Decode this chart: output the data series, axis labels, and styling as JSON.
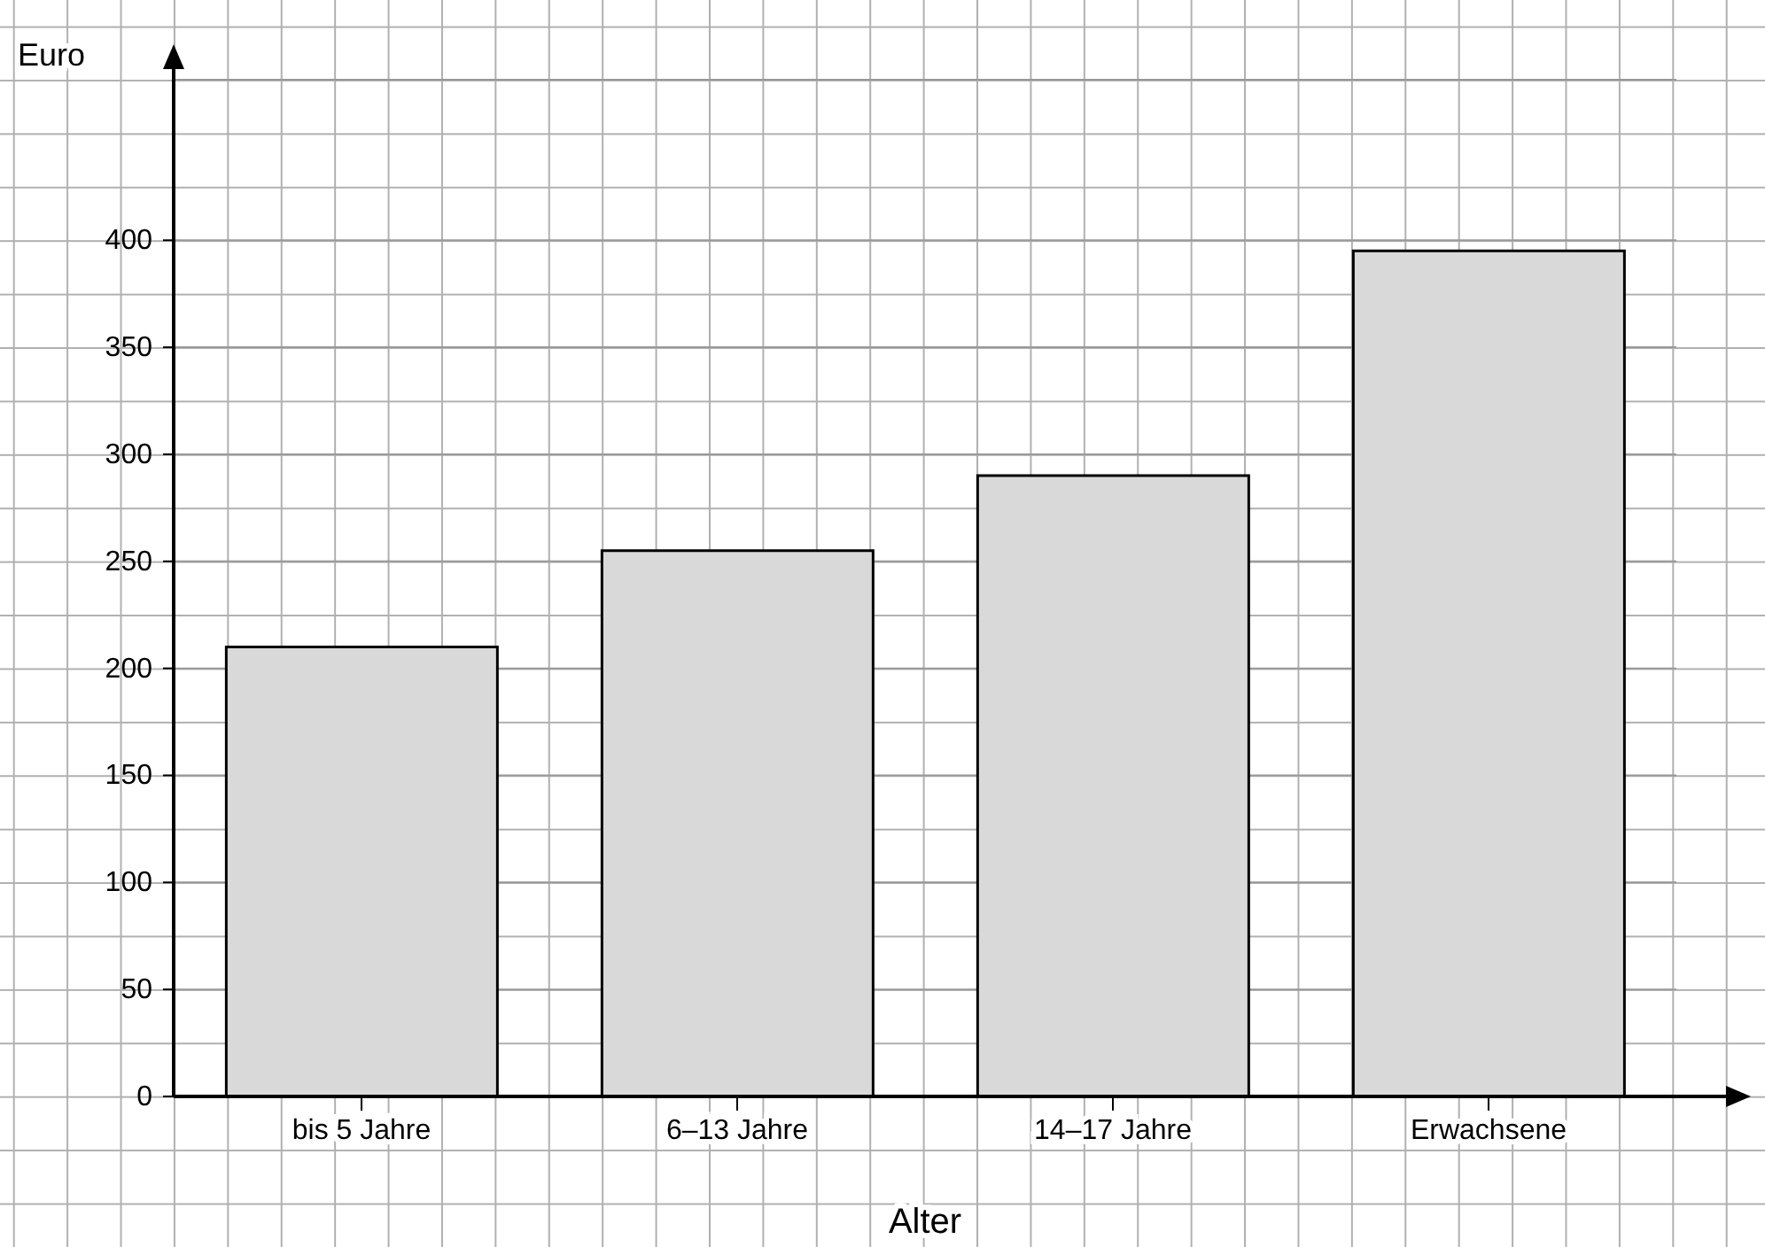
{
  "chart_data": {
    "type": "bar",
    "ylabel": "Euro",
    "xlabel": "Alter",
    "categories": [
      "bis 5 Jahre",
      "6–13 Jahre",
      "14–17 Jahre",
      "Erwachsene"
    ],
    "values": [
      210,
      255,
      290,
      395
    ],
    "color": "#d9d9d9",
    "ylim": [
      0,
      475
    ],
    "yticks": [
      0,
      50,
      100,
      150,
      200,
      250,
      300,
      350,
      400
    ],
    "grid": true
  }
}
